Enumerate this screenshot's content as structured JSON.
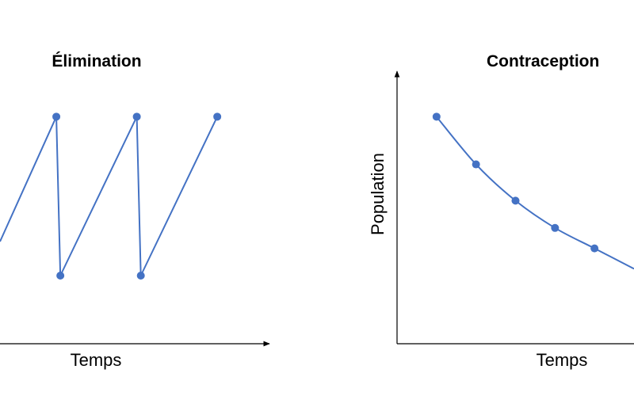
{
  "colors": {
    "series": "#4472c4",
    "axis": "#000000",
    "background": "#ffffff"
  },
  "chart_data": [
    {
      "type": "line",
      "title": "Élimination",
      "xlabel": "Temps",
      "ylabel": "",
      "grid": false,
      "legend": "none",
      "xlim": [
        0,
        6.5
      ],
      "ylim": [
        0,
        1.2
      ],
      "series": [
        {
          "x": [
            0,
            1.4,
            1.5,
            3.4,
            3.5,
            5.4
          ],
          "y": [
            0.45,
            1.0,
            0.3,
            1.0,
            0.3,
            1.0
          ],
          "markers": [
            false,
            true,
            true,
            true,
            true,
            true
          ]
        }
      ]
    },
    {
      "type": "line",
      "title": "Contraception",
      "xlabel": "Temps",
      "ylabel": "Population",
      "grid": false,
      "legend": "none",
      "xlim": [
        0,
        6
      ],
      "ylim": [
        0,
        1.2
      ],
      "series": [
        {
          "x": [
            1,
            2,
            3,
            4,
            5,
            6
          ],
          "y": [
            1.0,
            0.79,
            0.63,
            0.51,
            0.42,
            0.33
          ],
          "markers": [
            true,
            true,
            true,
            true,
            true,
            false
          ]
        }
      ]
    }
  ]
}
